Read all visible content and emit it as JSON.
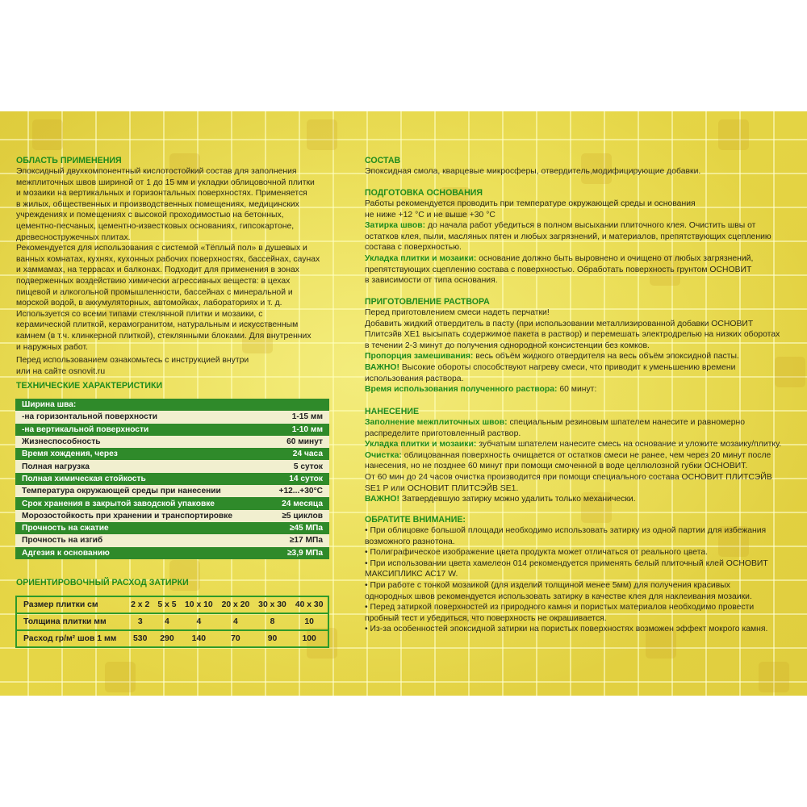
{
  "left": {
    "application": {
      "title": "ОБЛАСТЬ ПРИМЕНЕНИЯ",
      "paragraphs": [
        {
          "lines": [
            "Эпоксидный двухкомпонентный кислотостойкий состав для заполнения",
            "межплиточных швов шириной от 1 до 15 мм и укладки облицовочной плитки",
            "и мозаики на вертикальных и горизонтальных поверхностях. Применяется",
            "в жилых, общественных и производственных помещениях, медицинских",
            "учреждениях и помещениях с высокой проходимостью на бетонных,",
            "цементно-песчаных, цементно-известковых основаниях, гипсокартоне,",
            "древесностружечных плитах."
          ]
        },
        {
          "lines": [
            "Рекомендуется для использования с системой «Тёплый пол» в душевых и",
            "ванных комнатах, кухнях, кухонных рабочих поверхностях, бассейнах, саунах",
            "и хаммамах, на террасах и балконах. Подходит для применения в зонах",
            "подверженных воздействию химически агрессивных веществ: в цехах",
            "пищевой и алкогольной промышленности, бассейнах с минеральной и",
            "морской водой, в аккумуляторных, автомойках, лабораториях и т. д.",
            "Используется со всеми типами стеклянной плитки и мозаики, с",
            "керамической плиткой, керамогранитом, натуральным и искусственным",
            "камнем (в т.ч. клинкерной плиткой), стеклянными блоками. Для внутренних",
            "и наружных работ."
          ]
        },
        {
          "lines": [
            "Перед использованием ознакомьтесь с инструкцией внутри",
            "или на сайте osnovit.ru"
          ]
        }
      ]
    },
    "tech": {
      "title": "ТЕХНИЧЕСКИЕ ХАРАКТЕРИСТИКИ",
      "rows": [
        {
          "label": "Ширина шва:",
          "value": ""
        },
        {
          "label": "-на горизонтальной поверхности",
          "value": "1-15 мм"
        },
        {
          "label": "-на вертикальной поверхности",
          "value": "1-10 мм"
        },
        {
          "label": "Жизнеспособность",
          "value": "60 минут"
        },
        {
          "label": "Время хождения, через",
          "value": "24 часа"
        },
        {
          "label": "Полная нагрузка",
          "value": "5 суток"
        },
        {
          "label": "Полная химическая стойкость",
          "value": "14 суток"
        },
        {
          "label": "Температура окружающей среды при нанесении",
          "value": "+12...+30°C"
        },
        {
          "label": "Срок хранения в закрытой заводской упаковке",
          "value": "24 месяца"
        },
        {
          "label": "Морозостойкость при хранении и транспортировке",
          "value": "≥5 циклов"
        },
        {
          "label": "Прочность на сжатие",
          "value": "≥45 МПа"
        },
        {
          "label": "Прочность на изгиб",
          "value": "≥17 МПа"
        },
        {
          "label": "Адгезия к основанию",
          "value": "≥3,9 МПа"
        }
      ]
    },
    "consumption": {
      "title": "ОРИЕНТИРОВОЧНЫЙ РАСХОД ЗАТИРКИ",
      "rows": [
        [
          "Размер плитки см",
          "2 x 2",
          "5 x 5",
          "10 x 10",
          "20 x 20",
          "30 x 30",
          "40 x 30"
        ],
        [
          "Толщина плитки мм",
          "3",
          "4",
          "4",
          "4",
          "8",
          "10"
        ],
        [
          "Расход гр/м² шов 1 мм",
          "530",
          "290",
          "140",
          "70",
          "90",
          "100"
        ]
      ]
    }
  },
  "right": {
    "sections": [
      {
        "title": "СОСТАВ",
        "paragraphs": [
          {
            "lines": [
              "Эпоксидная смола, кварцевые микросферы, отвердитель,модифицирующие добавки."
            ]
          }
        ]
      },
      {
        "title": "ПОДГОТОВКА ОСНОВАНИЯ",
        "paragraphs": [
          {
            "lines": [
              "Работы рекомендуется проводить при температуре окружающей среды и основания",
              "не ниже +12 °C и не выше +30 °C"
            ]
          },
          {
            "label": "Затирка швов:",
            "lines": [
              " до начала работ убедиться в полном высыхании плиточного клея. Очистить швы от",
              "остатков клея, пыли, масляных пятен и любых загрязнений, и материалов, препятствующих сцеплению",
              "состава с поверхностью."
            ]
          },
          {
            "label": "Укладка плитки и мозаики:",
            "lines": [
              " основание должно быть выровнено и очищено от любых загрязнений,",
              "препятствующих сцеплению состава с поверхностью. Обработать поверхность грунтом ОСНОВИТ",
              "в зависимости от типа основания."
            ]
          }
        ]
      },
      {
        "title": "ПРИГОТОВЛЕНИЕ РАСТВОРА",
        "paragraphs": [
          {
            "lines": [
              "Перед приготовлением смеси надеть перчатки!",
              "Добавить жидкий отвердитель в пасту (при использовании металлизированной добавки ОСНОВИТ",
              "Плитсэйв XE1 высыпать содержимое пакета в раствор) и перемешать электродрелью на низких оборотах",
              "в течении 2-3 минут до получения однородной консистенции без комков."
            ]
          },
          {
            "label": "Пропорция замешивания:",
            "lines": [
              " весь объём жидкого отвердителя на весь объём эпоксидной пасты."
            ]
          },
          {
            "label": "ВАЖНО!",
            "lines": [
              " Высокие обороты способствуют нагреву смеси, что приводит к уменьшению времени",
              "использования раствора."
            ]
          },
          {
            "label": "Время использования полученного раствора:",
            "lines": [
              " 60 минут:"
            ]
          }
        ]
      },
      {
        "title": "НАНЕСЕНИЕ",
        "paragraphs": [
          {
            "label": "Заполнение межплиточных швов:",
            "lines": [
              " специальным резиновым шпателем нанесите и равномерно",
              "распределите приготовленный раствор."
            ]
          },
          {
            "label": "Укладка плитки и мозаики:",
            "lines": [
              " зубчатым шпателем нанесите смесь на основание и уложите мозаику/плитку."
            ]
          },
          {
            "label": "Очистка:",
            "lines": [
              " облицованная поверхность очищается от остатков смеси не ранее, чем через 20 минут после",
              "нанесения, но не позднее 60 минут при помощи смоченной в воде целлюлозной губки ОСНОВИТ.",
              "От 60 мин до 24 часов очистка производится при помощи специального состава ОСНОВИТ ПЛИТСЭЙВ",
              "SE1 P или ОСНОВИТ ПЛИТСЭЙВ SE1."
            ]
          },
          {
            "label": "ВАЖНО!",
            "lines": [
              " Затвердевшую затирку можно удалить только механически."
            ]
          }
        ]
      },
      {
        "title": "ОБРАТИТЕ ВНИМАНИЕ:",
        "paragraphs": [
          {
            "lines": [
              "• При облицовке большой площади необходимо использовать затирку из одной партии для избежания",
              "возможного разнотона."
            ]
          },
          {
            "lines": [
              "• Полиграфическое изображение цвета продукта может отличаться от реального цвета."
            ]
          },
          {
            "lines": [
              "• При использовании цвета хамелеон 014 рекомендуется применять белый плиточный клей ОСНОВИТ",
              "МАКСИПЛИКС АС17 W."
            ]
          },
          {
            "lines": [
              "• При работе с тонкой мозаикой (для изделий толщиной менее 5мм) для получения красивых",
              "однородных швов рекомендуется использовать затирку в качестве клея для наклеивания мозаики."
            ]
          },
          {
            "lines": [
              "• Перед затиркой поверхностей из природного камня и пористых материалов необходимо провести",
              "пробный тест и убедиться, что поверхность не окрашивается."
            ]
          },
          {
            "lines": [
              "• Из-за особенностей эпоксидной затирки на пористых поверхностях  возможен эффект мокрого камня."
            ]
          }
        ]
      }
    ]
  },
  "colors": {
    "heading_green": "#1e8a1e",
    "table_green": "#2f8a2a",
    "table_cream": "#f1efcf",
    "background_yellow": "#e6d646"
  }
}
